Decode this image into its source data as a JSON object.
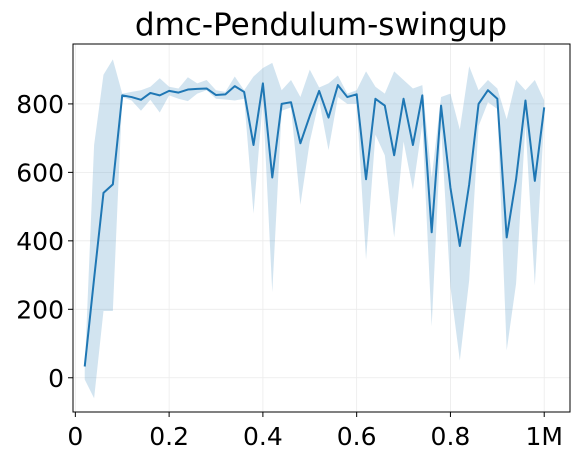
{
  "chart_data": {
    "type": "line",
    "title": "dmc-Pendulum-swingup",
    "xlabel": "",
    "ylabel": "",
    "xlim": [
      -0.005,
      1.055
    ],
    "ylim": [
      -100,
      975
    ],
    "grid": true,
    "x_ticks": [
      {
        "value": 0,
        "label": "0"
      },
      {
        "value": 0.2,
        "label": "0.2"
      },
      {
        "value": 0.4,
        "label": "0.4"
      },
      {
        "value": 0.6,
        "label": "0.6"
      },
      {
        "value": 0.8,
        "label": "0.8"
      },
      {
        "value": 1.0,
        "label": "1M"
      }
    ],
    "y_ticks": [
      {
        "value": 0,
        "label": "0"
      },
      {
        "value": 200,
        "label": "200"
      },
      {
        "value": 400,
        "label": "400"
      },
      {
        "value": 600,
        "label": "600"
      },
      {
        "value": 800,
        "label": "800"
      }
    ],
    "series": [
      {
        "name": "",
        "color": "#1f77b4",
        "band_color": "#1f77b4",
        "x": [
          0.02,
          0.04,
          0.06,
          0.08,
          0.1,
          0.12,
          0.14,
          0.16,
          0.18,
          0.2,
          0.22,
          0.24,
          0.26,
          0.28,
          0.3,
          0.32,
          0.34,
          0.36,
          0.38,
          0.4,
          0.42,
          0.44,
          0.46,
          0.48,
          0.5,
          0.52,
          0.54,
          0.56,
          0.58,
          0.6,
          0.62,
          0.64,
          0.66,
          0.68,
          0.7,
          0.72,
          0.74,
          0.76,
          0.78,
          0.8,
          0.82,
          0.84,
          0.86,
          0.88,
          0.9,
          0.92,
          0.94,
          0.96,
          0.98,
          1.0
        ],
        "y": [
          33,
          290,
          540,
          565,
          825,
          820,
          812,
          832,
          825,
          838,
          833,
          842,
          844,
          845,
          826,
          828,
          852,
          835,
          680,
          860,
          585,
          800,
          805,
          685,
          765,
          838,
          760,
          855,
          820,
          828,
          580,
          815,
          795,
          650,
          815,
          680,
          825,
          425,
          795,
          555,
          385,
          565,
          800,
          840,
          815,
          410,
          580,
          810,
          575,
          790
        ],
        "lower": [
          -5,
          -60,
          195,
          195,
          820,
          810,
          780,
          812,
          775,
          825,
          815,
          808,
          830,
          840,
          815,
          813,
          810,
          815,
          480,
          810,
          250,
          780,
          790,
          505,
          690,
          810,
          665,
          820,
          800,
          800,
          345,
          710,
          650,
          410,
          690,
          550,
          740,
          150,
          730,
          265,
          50,
          285,
          735,
          805,
          785,
          80,
          275,
          740,
          270,
          760
        ],
        "upper": [
          25,
          680,
          885,
          930,
          830,
          835,
          840,
          850,
          875,
          850,
          845,
          878,
          860,
          870,
          840,
          835,
          880,
          840,
          880,
          905,
          920,
          840,
          870,
          820,
          900,
          848,
          860,
          883,
          830,
          840,
          895,
          850,
          830,
          895,
          870,
          845,
          855,
          585,
          820,
          830,
          725,
          910,
          840,
          870,
          845,
          755,
          870,
          840,
          870,
          810
        ]
      }
    ]
  }
}
